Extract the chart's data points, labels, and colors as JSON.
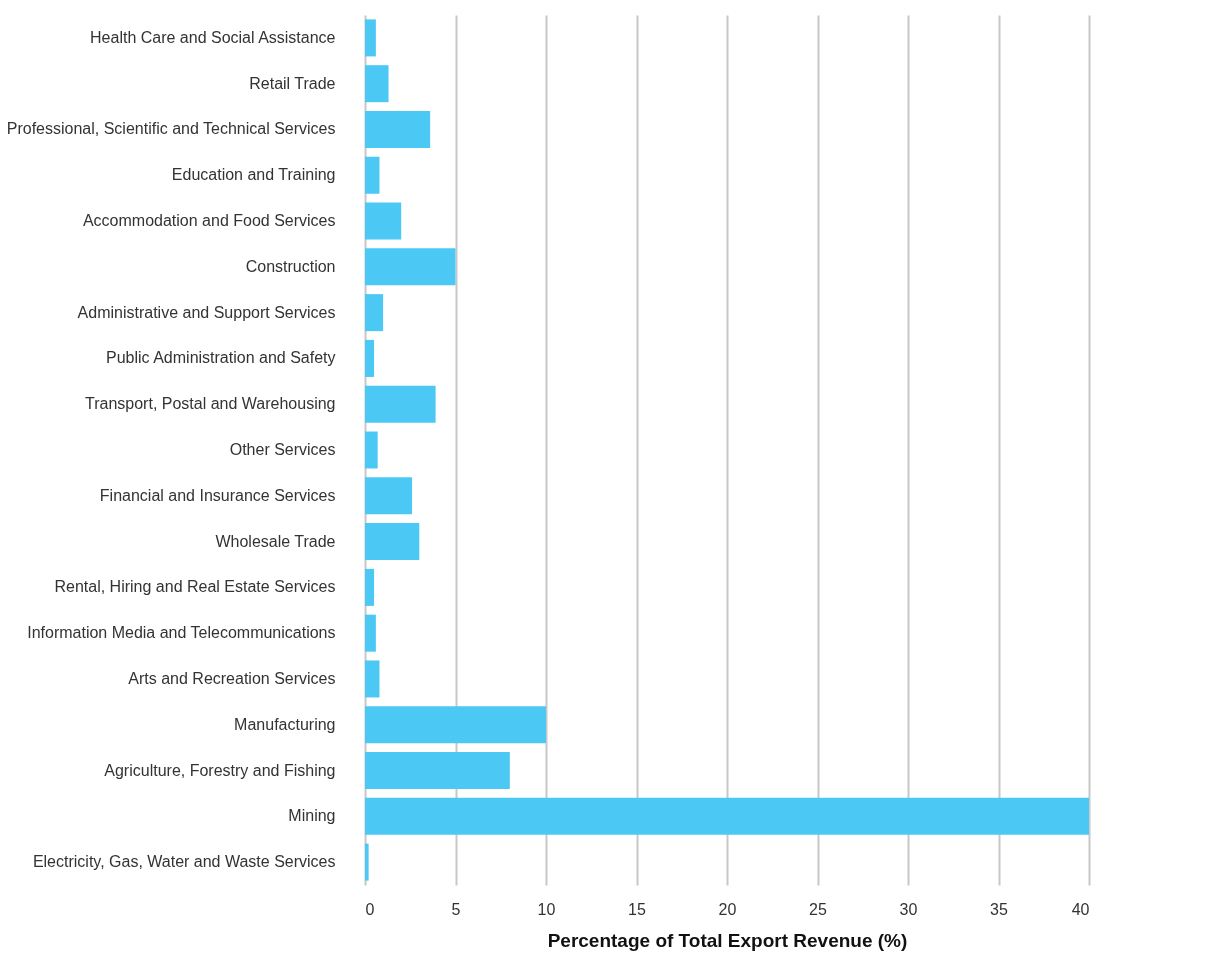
{
  "chart_data": {
    "type": "bar",
    "orientation": "horizontal",
    "xlabel": "Percentage of Total Export Revenue (%)",
    "categories": [
      "Health Care and Social Assistance",
      "Retail Trade",
      "Professional, Scientific and Technical Services",
      "Education and Training",
      "Accommodation and Food Services",
      "Construction",
      "Administrative and Support Services",
      "Public Administration and Safety",
      "Transport, Postal and Warehousing",
      "Other Services",
      "Financial and Insurance Services",
      "Wholesale Trade",
      "Rental, Hiring and Real Estate Services",
      "Information Media and Telecommunications",
      "Arts and Recreation Services",
      "Manufacturing",
      "Agriculture, Forestry and Fishing",
      "Mining",
      "Electricity, Gas, Water and Waste Services"
    ],
    "values": [
      0.6,
      1.3,
      3.6,
      0.8,
      2.0,
      5.0,
      1.0,
      0.5,
      3.9,
      0.7,
      2.6,
      3.0,
      0.5,
      0.6,
      0.8,
      10.0,
      8.0,
      40.0,
      0.2
    ],
    "color": "#4bc8f4",
    "xlim": [
      0,
      40
    ],
    "xticks": [
      0,
      5,
      10,
      15,
      20,
      25,
      30,
      35,
      40
    ],
    "grid": "x"
  }
}
